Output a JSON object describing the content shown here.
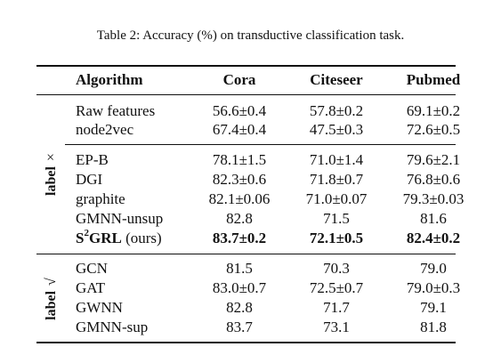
{
  "caption": "Table 2: Accuracy (%) on transductive classification task.",
  "header": {
    "algorithm": "Algorithm",
    "cora": "Cora",
    "citeseer": "Citeseer",
    "pubmed": "Pubmed"
  },
  "group_labels": {
    "unlabeled": {
      "word": "label",
      "symbol": "×"
    },
    "labeled": {
      "word": "label",
      "symbol": "√"
    }
  },
  "rows": [
    {
      "algorithm": "Raw features",
      "cora": "56.6±0.4",
      "citeseer": "57.8±0.2",
      "pubmed": "69.1±0.2"
    },
    {
      "algorithm": "node2vec",
      "cora": "67.4±0.4",
      "citeseer": "47.5±0.3",
      "pubmed": "72.6±0.5"
    },
    {
      "algorithm": "EP-B",
      "cora": "78.1±1.5",
      "citeseer": "71.0±1.4",
      "pubmed": "79.6±2.1"
    },
    {
      "algorithm": "DGI",
      "cora": "82.3±0.6",
      "citeseer": "71.8±0.7",
      "pubmed": "76.8±0.6"
    },
    {
      "algorithm": "graphite",
      "cora": "82.1±0.06",
      "citeseer": "71.0±0.07",
      "pubmed": "79.3±0.03"
    },
    {
      "algorithm": "GMNN-unsup",
      "cora": "82.8",
      "citeseer": "71.5",
      "pubmed": "81.6"
    },
    {
      "algorithm_prefix": "S",
      "algorithm_sup": "2",
      "algorithm_suffix": "GRL",
      "algorithm_note": " (ours)",
      "cora": "83.7±0.2",
      "citeseer": "72.1±0.5",
      "pubmed": "82.4±0.2"
    },
    {
      "algorithm": "GCN",
      "cora": "81.5",
      "citeseer": "70.3",
      "pubmed": "79.0"
    },
    {
      "algorithm": "GAT",
      "cora": "83.0±0.7",
      "citeseer": "72.5±0.7",
      "pubmed": "79.0±0.3"
    },
    {
      "algorithm": "GWNN",
      "cora": "82.8",
      "citeseer": "71.7",
      "pubmed": "79.1"
    },
    {
      "algorithm": "GMNN-sup",
      "cora": "83.7",
      "citeseer": "73.1",
      "pubmed": "81.8"
    }
  ]
}
